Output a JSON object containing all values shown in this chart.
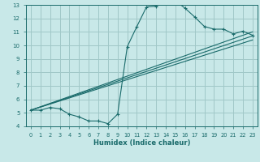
{
  "xlabel": "Humidex (Indice chaleur)",
  "background_color": "#c8e8e8",
  "grid_color": "#a0c8c8",
  "line_color": "#1a6b6b",
  "xlim": [
    -0.5,
    23.5
  ],
  "ylim": [
    4,
    13
  ],
  "xticks": [
    0,
    1,
    2,
    3,
    4,
    5,
    6,
    7,
    8,
    9,
    10,
    11,
    12,
    13,
    14,
    15,
    16,
    17,
    18,
    19,
    20,
    21,
    22,
    23
  ],
  "yticks": [
    4,
    5,
    6,
    7,
    8,
    9,
    10,
    11,
    12,
    13
  ],
  "line1_x": [
    0,
    1,
    2,
    3,
    4,
    5,
    6,
    7,
    8,
    9,
    10,
    11,
    12,
    13,
    14,
    15,
    16,
    17,
    18,
    19,
    20,
    21,
    22,
    23
  ],
  "line1_y": [
    5.2,
    5.2,
    5.4,
    5.3,
    4.9,
    4.7,
    4.4,
    4.4,
    4.2,
    4.9,
    9.9,
    11.4,
    12.85,
    12.9,
    13.25,
    13.3,
    12.75,
    12.1,
    11.4,
    11.2,
    11.2,
    10.85,
    11.05,
    10.75
  ],
  "line2_x": [
    0,
    23
  ],
  "line2_y": [
    5.2,
    11.0
  ],
  "line3_x": [
    0,
    23
  ],
  "line3_y": [
    5.2,
    10.7
  ],
  "line4_x": [
    0,
    23
  ],
  "line4_y": [
    5.2,
    10.4
  ]
}
